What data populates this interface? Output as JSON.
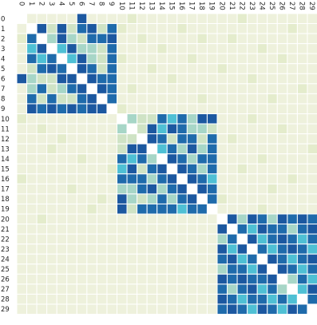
{
  "chart_data": {
    "type": "heatmap",
    "title": "",
    "xlabel": "",
    "ylabel": "",
    "x_ticks": [
      "0",
      "1",
      "2",
      "3",
      "4",
      "5",
      "6",
      "7",
      "8",
      "9",
      "10",
      "11",
      "12",
      "13",
      "14",
      "15",
      "16",
      "17",
      "18",
      "19",
      "20",
      "21",
      "22",
      "23",
      "24",
      "25",
      "26",
      "27",
      "28",
      "29"
    ],
    "y_ticks": [
      "0",
      "1",
      "2",
      "3",
      "4",
      "5",
      "6",
      "7",
      "8",
      "9",
      "10",
      "11",
      "12",
      "13",
      "14",
      "15",
      "16",
      "17",
      "18",
      "19",
      "20",
      "21",
      "22",
      "23",
      "24",
      "25",
      "26",
      "27",
      "28",
      "29"
    ],
    "x_tick_position": "top",
    "x_tick_rotation": 90,
    "value_range": [
      0,
      1
    ],
    "colormap": [
      "#ffffff",
      "#eef1dc",
      "#e4eccc",
      "#cfe3c5",
      "#a7d6c7",
      "#4fc0d4",
      "#1f6bab",
      "#1c58a0"
    ],
    "matrix": [
      [
        0,
        0,
        0,
        0,
        0,
        0,
        0.95,
        0,
        0,
        0,
        0,
        0.1,
        0,
        0,
        0,
        0,
        0,
        0,
        0,
        0,
        0,
        0,
        0.1,
        0,
        0,
        0,
        0,
        0,
        0,
        0
      ],
      [
        0,
        0,
        0.95,
        0.2,
        0.95,
        0.2,
        0.9,
        0.95,
        0.2,
        0.9,
        0.1,
        0,
        0,
        0,
        0,
        0,
        0.1,
        0,
        0,
        0,
        0,
        0,
        0,
        0,
        0,
        0,
        0,
        0.1,
        0,
        0
      ],
      [
        0.1,
        0.9,
        0,
        0.4,
        0.95,
        0.3,
        0.2,
        0.9,
        0.9,
        0.95,
        0,
        0,
        0.1,
        0,
        0,
        0,
        0,
        0,
        0.1,
        0,
        0,
        0.1,
        0,
        0,
        0,
        0,
        0,
        0,
        0,
        0
      ],
      [
        0,
        0.5,
        0.95,
        0,
        0.5,
        0.95,
        0.3,
        0.3,
        0.2,
        0.9,
        0,
        0,
        0,
        0,
        0.1,
        0,
        0,
        0,
        0,
        0,
        0,
        0,
        0,
        0,
        0.1,
        0,
        0,
        0,
        0,
        0
      ],
      [
        0,
        0.9,
        0.6,
        0.9,
        0,
        0.5,
        0.95,
        0.3,
        0.2,
        0.9,
        0.1,
        0,
        0,
        0,
        0,
        0,
        0,
        0.1,
        0,
        0,
        0,
        0,
        0,
        0,
        0,
        0,
        0.1,
        0,
        0,
        0
      ],
      [
        0,
        0.2,
        0.9,
        0.95,
        0.9,
        0,
        0.95,
        0.9,
        0.2,
        0.9,
        0,
        0,
        0,
        0.1,
        0,
        0,
        0,
        0,
        0,
        0,
        0.1,
        0,
        0,
        0,
        0,
        0,
        0,
        0,
        0,
        0
      ],
      [
        0.95,
        0.4,
        0.2,
        0.2,
        0.95,
        0.95,
        0,
        0.95,
        0.9,
        0.9,
        0,
        0,
        0,
        0,
        0,
        0.1,
        0,
        0,
        0,
        0,
        0,
        0,
        0,
        0.1,
        0,
        0,
        0,
        0,
        0,
        0
      ],
      [
        0,
        0.3,
        0.9,
        0.2,
        0.4,
        0.9,
        0.95,
        0,
        0.95,
        0.9,
        0,
        0.1,
        0,
        0,
        0,
        0,
        0,
        0,
        0,
        0,
        0,
        0,
        0,
        0,
        0,
        0,
        0,
        0,
        0.1,
        0
      ],
      [
        0,
        0.9,
        0.2,
        0.9,
        0.2,
        0.2,
        0.9,
        0.95,
        0,
        0.9,
        0,
        0,
        0,
        0,
        0,
        0,
        0,
        0,
        0.1,
        0,
        0,
        0,
        0,
        0,
        0,
        0.1,
        0,
        0,
        0,
        0
      ],
      [
        0,
        0.95,
        0.9,
        0.95,
        0.9,
        0.95,
        0.9,
        0.95,
        0.95,
        0,
        0.1,
        0,
        0,
        0,
        0,
        0,
        0,
        0,
        0,
        0,
        0,
        0,
        0,
        0,
        0,
        0,
        0,
        0,
        0,
        0
      ],
      [
        0.1,
        0,
        0,
        0,
        0,
        0,
        0,
        0,
        0,
        0,
        0,
        0.3,
        0.2,
        0.2,
        0.9,
        0.5,
        0.9,
        0.3,
        0.95,
        0.95,
        0,
        0,
        0,
        0.1,
        0,
        0,
        0,
        0,
        0,
        0
      ],
      [
        0,
        0,
        0.1,
        0,
        0,
        0,
        0,
        0,
        0,
        0,
        0.3,
        0,
        0.2,
        0.95,
        0.5,
        0.95,
        0.9,
        0.3,
        0.3,
        0.2,
        0,
        0,
        0,
        0,
        0,
        0,
        0.1,
        0,
        0,
        0
      ],
      [
        0,
        0,
        0,
        0,
        0.1,
        0,
        0,
        0,
        0,
        0,
        0.2,
        0.2,
        0,
        0.95,
        0.9,
        0.2,
        0.9,
        0.9,
        0.2,
        0.9,
        0,
        0.1,
        0,
        0,
        0,
        0,
        0,
        0,
        0,
        0
      ],
      [
        0,
        0,
        0,
        0.1,
        0,
        0,
        0,
        0,
        0,
        0,
        0.2,
        0.95,
        0.95,
        0,
        0.5,
        0.9,
        0.4,
        0.95,
        0.3,
        0.9,
        0,
        0,
        0,
        0,
        0,
        0,
        0,
        0,
        0,
        0.1
      ],
      [
        0,
        0,
        0,
        0,
        0,
        0,
        0.1,
        0,
        0,
        0,
        0.9,
        0.5,
        0.9,
        0.4,
        0,
        0.95,
        0.9,
        0.3,
        0.9,
        0.9,
        0,
        0,
        0,
        0,
        0.1,
        0,
        0,
        0,
        0,
        0
      ],
      [
        0,
        0,
        0,
        0,
        0,
        0,
        0,
        0,
        0,
        0.1,
        0.5,
        0.95,
        0.2,
        0.9,
        0.95,
        0,
        0.95,
        0.9,
        0.4,
        0.9,
        0,
        0,
        0.1,
        0,
        0,
        0,
        0,
        0,
        0,
        0
      ],
      [
        0.1,
        0,
        0,
        0,
        0,
        0,
        0,
        0,
        0,
        0,
        0.9,
        0.9,
        0.9,
        0.4,
        0.9,
        0.95,
        0,
        0.95,
        0.9,
        0.5,
        0,
        0,
        0,
        0,
        0,
        0,
        0,
        0.1,
        0,
        0
      ],
      [
        0,
        0,
        0,
        0,
        0,
        0.1,
        0,
        0,
        0,
        0,
        0.3,
        0.3,
        0.9,
        0.95,
        0.3,
        0.9,
        0.95,
        0,
        0.95,
        0.9,
        0,
        0,
        0,
        0,
        0,
        0.1,
        0,
        0,
        0,
        0
      ],
      [
        0,
        0,
        0,
        0,
        0,
        0,
        0,
        0,
        0.1,
        0,
        0.95,
        0.3,
        0.2,
        0.3,
        0.9,
        0.4,
        0.9,
        0.95,
        0,
        0.9,
        0.1,
        0,
        0,
        0,
        0,
        0,
        0,
        0,
        0,
        0
      ],
      [
        0,
        0,
        0,
        0,
        0,
        0,
        0,
        0.1,
        0,
        0,
        0.95,
        0.2,
        0.9,
        0.9,
        0.9,
        0.9,
        0.5,
        0.9,
        0.9,
        0,
        0,
        0,
        0,
        0,
        0.1,
        0,
        0,
        0,
        0,
        0
      ],
      [
        0,
        0,
        0.1,
        0,
        0,
        0,
        0,
        0,
        0,
        0,
        0,
        0,
        0,
        0,
        0,
        0,
        0,
        0,
        0,
        0,
        0,
        0.95,
        0.3,
        0.95,
        0.9,
        0.4,
        0.95,
        0.9,
        0.95,
        0.9
      ],
      [
        0,
        0,
        0,
        0,
        0,
        0,
        0,
        0,
        0,
        0,
        0,
        0,
        0,
        0,
        0,
        0,
        0,
        0,
        0,
        0,
        0.95,
        0,
        0.9,
        0.6,
        0.95,
        0.9,
        0.9,
        0.4,
        0.9,
        0.95
      ],
      [
        0,
        0,
        0,
        0,
        0,
        0,
        0,
        0,
        0,
        0,
        0,
        0,
        0,
        0,
        0,
        0,
        0,
        0,
        0,
        0,
        0.3,
        0.9,
        0,
        0.95,
        0.6,
        0.9,
        0.95,
        0.9,
        0.5,
        0.9
      ],
      [
        0,
        0,
        0,
        0,
        0,
        0,
        0,
        0,
        0,
        0,
        0,
        0,
        0,
        0,
        0,
        0,
        0,
        0,
        0,
        0,
        0.95,
        0.6,
        0.95,
        0,
        0.9,
        0.6,
        0.9,
        0.95,
        0.9,
        0.5
      ],
      [
        0,
        0,
        0,
        0,
        0,
        0,
        0,
        0,
        0,
        0,
        0,
        0,
        0,
        0,
        0,
        0,
        0,
        0,
        0,
        0,
        0.9,
        0.95,
        0.6,
        0.9,
        0,
        0.95,
        0.9,
        0.6,
        0.9,
        0.95
      ],
      [
        0,
        0,
        0,
        0,
        0,
        0,
        0,
        0,
        0,
        0,
        0,
        0,
        0,
        0,
        0,
        0,
        0,
        0,
        0,
        0,
        0.4,
        0.9,
        0.9,
        0.6,
        0.95,
        0,
        0.95,
        0.9,
        0.6,
        0.9
      ],
      [
        0,
        0,
        0,
        0,
        0,
        0,
        0,
        0,
        0,
        0,
        0,
        0,
        0,
        0,
        0,
        0,
        0,
        0,
        0,
        0,
        0.95,
        0.9,
        0.95,
        0.9,
        0.9,
        0.95,
        0,
        0.4,
        0.9,
        0.6
      ],
      [
        0,
        0,
        0,
        0,
        0,
        0,
        0,
        0,
        0,
        0,
        0,
        0,
        0,
        0,
        0,
        0,
        0,
        0,
        0,
        0,
        0.9,
        0.4,
        0.9,
        0.95,
        0.6,
        0.9,
        0.4,
        0,
        0.6,
        0.95
      ],
      [
        0,
        0,
        0,
        0,
        0,
        0,
        0,
        0,
        0,
        0,
        0,
        0,
        0,
        0,
        0,
        0,
        0,
        0,
        0,
        0,
        0.95,
        0.9,
        0.5,
        0.9,
        0.9,
        0.6,
        0.9,
        0.6,
        0,
        0.9
      ],
      [
        0,
        0,
        0,
        0,
        0,
        0,
        0,
        0,
        0,
        0,
        0,
        0,
        0,
        0,
        0,
        0,
        0,
        0,
        0,
        0,
        0.9,
        0.95,
        0.9,
        0.5,
        0.95,
        0.9,
        0.6,
        0.95,
        0.9,
        0
      ]
    ]
  }
}
